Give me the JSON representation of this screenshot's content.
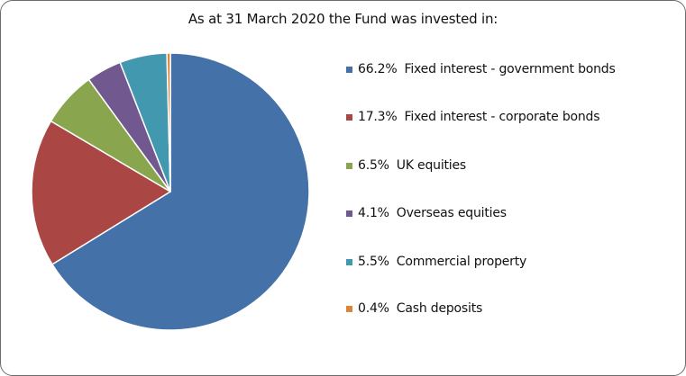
{
  "chart_data": {
    "type": "pie",
    "title": "As at 31 March 2020 the Fund was invested in:",
    "slices": [
      {
        "label": "Fixed interest - government bonds",
        "value": 66.2,
        "display": "66.2%",
        "color": "#4472a8"
      },
      {
        "label": "Fixed interest - corporate bonds",
        "value": 17.3,
        "display": "17.3%",
        "color": "#aa4644"
      },
      {
        "label": "UK equities",
        "value": 6.5,
        "display": "6.5%",
        "color": "#89a54e"
      },
      {
        "label": "Overseas equities",
        "value": 4.1,
        "display": "4.1%",
        "color": "#71588f"
      },
      {
        "label": "Commercial property",
        "value": 5.5,
        "display": "5.5%",
        "color": "#4298af"
      },
      {
        "label": "Cash deposits",
        "value": 0.4,
        "display": "0.4%",
        "color": "#db843d"
      }
    ],
    "legend_position": "right"
  }
}
